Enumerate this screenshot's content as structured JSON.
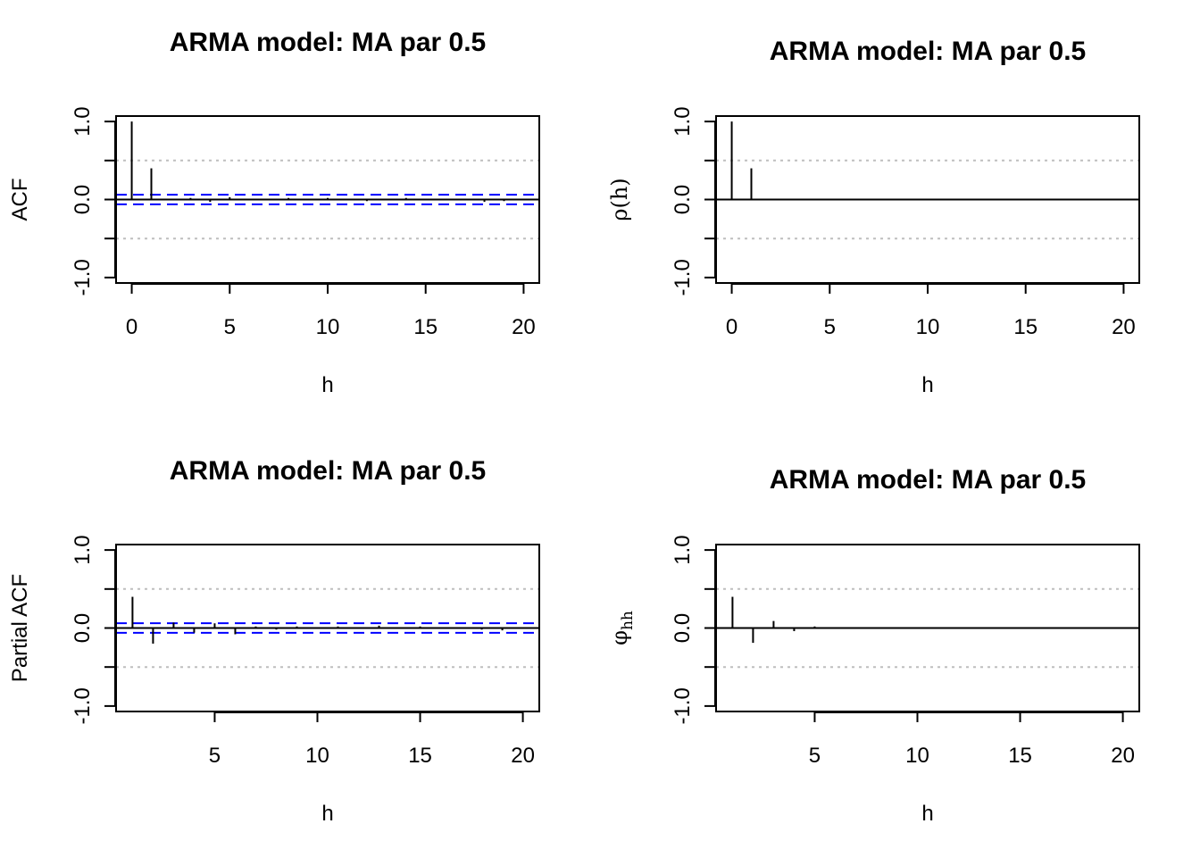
{
  "chart_data": [
    {
      "type": "bar",
      "subtype": "acf-stem",
      "title": "ARMA model: MA par 0.5",
      "xlabel": "h",
      "ylabel": "ACF",
      "xlim": [
        -0.8,
        20.8
      ],
      "ylim": [
        -1.07,
        1.07
      ],
      "xticks": [
        0,
        5,
        10,
        15,
        20
      ],
      "yticks": [
        -1.0,
        -0.5,
        0.0,
        0.5,
        1.0
      ],
      "ytick_labels": [
        "-1.0",
        "",
        "0.0",
        "",
        "1.0"
      ],
      "reference_lines": [
        0.5,
        -0.5
      ],
      "confidence_band": 0.062,
      "confidence_color": "#0000ff",
      "zero_line": true,
      "x": [
        0,
        1,
        2,
        3,
        4,
        5,
        6,
        7,
        8,
        9,
        10,
        11,
        12,
        13,
        14,
        15,
        16,
        17,
        18,
        19,
        20
      ],
      "values": [
        1.0,
        0.4,
        -0.01,
        0.02,
        -0.03,
        0.03,
        -0.01,
        0.01,
        0.02,
        -0.01,
        0.02,
        0.01,
        -0.02,
        0.01,
        0.02,
        -0.01,
        0.01,
        -0.01,
        -0.03,
        -0.02,
        0.01
      ]
    },
    {
      "type": "bar",
      "subtype": "theoretical-acf",
      "title": "ARMA model: MA par 0.5",
      "xlabel": "h",
      "ylabel": "ρ(h)",
      "xlim": [
        -0.8,
        20.8
      ],
      "ylim": [
        -1.07,
        1.07
      ],
      "xticks": [
        0,
        5,
        10,
        15,
        20
      ],
      "yticks": [
        -1.0,
        -0.5,
        0.0,
        0.5,
        1.0
      ],
      "ytick_labels": [
        "-1.0",
        "",
        "0.0",
        "",
        "1.0"
      ],
      "reference_lines": [
        0.5,
        -0.5
      ],
      "zero_line": true,
      "x": [
        0,
        1,
        2,
        3,
        4,
        5,
        6,
        7,
        8,
        9,
        10,
        11,
        12,
        13,
        14,
        15,
        16,
        17,
        18,
        19,
        20
      ],
      "values": [
        1.0,
        0.4,
        0,
        0,
        0,
        0,
        0,
        0,
        0,
        0,
        0,
        0,
        0,
        0,
        0,
        0,
        0,
        0,
        0,
        0,
        0
      ]
    },
    {
      "type": "bar",
      "subtype": "pacf-stem",
      "title": "ARMA model: MA par 0.5",
      "xlabel": "h",
      "ylabel": "Partial ACF",
      "xlim": [
        0.2,
        20.8
      ],
      "ylim": [
        -1.07,
        1.07
      ],
      "xticks": [
        5,
        10,
        15,
        20
      ],
      "yticks": [
        -1.0,
        -0.5,
        0.0,
        0.5,
        1.0
      ],
      "ytick_labels": [
        "-1.0",
        "",
        "0.0",
        "",
        "1.0"
      ],
      "reference_lines": [
        0.5,
        -0.5
      ],
      "confidence_band": 0.062,
      "confidence_color": "#0000ff",
      "zero_line": true,
      "x": [
        1,
        2,
        3,
        4,
        5,
        6,
        7,
        8,
        9,
        10,
        11,
        12,
        13,
        14,
        15,
        16,
        17,
        18,
        19,
        20
      ],
      "values": [
        0.4,
        -0.2,
        0.07,
        -0.06,
        0.06,
        -0.08,
        0.02,
        -0.02,
        0.02,
        -0.01,
        0.02,
        0.01,
        0.03,
        0.01,
        0.02,
        0.01,
        -0.01,
        -0.02,
        -0.03,
        0.01
      ]
    },
    {
      "type": "bar",
      "subtype": "theoretical-pacf",
      "title": "ARMA model: MA par 0.5",
      "xlabel": "h",
      "ylabel_symbol": "φ",
      "ylabel_subscript": "hh",
      "xlim": [
        0.2,
        20.8
      ],
      "ylim": [
        -1.07,
        1.07
      ],
      "xticks": [
        5,
        10,
        15,
        20
      ],
      "yticks": [
        -1.0,
        -0.5,
        0.0,
        0.5,
        1.0
      ],
      "ytick_labels": [
        "-1.0",
        "",
        "0.0",
        "",
        "1.0"
      ],
      "reference_lines": [
        0.5,
        -0.5
      ],
      "zero_line": true,
      "x": [
        1,
        2,
        3,
        4,
        5,
        6,
        7,
        8,
        9,
        10,
        11,
        12,
        13,
        14,
        15,
        16,
        17,
        18,
        19,
        20
      ],
      "values": [
        0.4,
        -0.19,
        0.09,
        -0.04,
        0.02,
        -0.01,
        0.005,
        -0.002,
        0.001,
        0,
        0,
        0,
        0,
        0,
        0,
        0,
        0,
        0,
        0,
        0
      ]
    }
  ]
}
